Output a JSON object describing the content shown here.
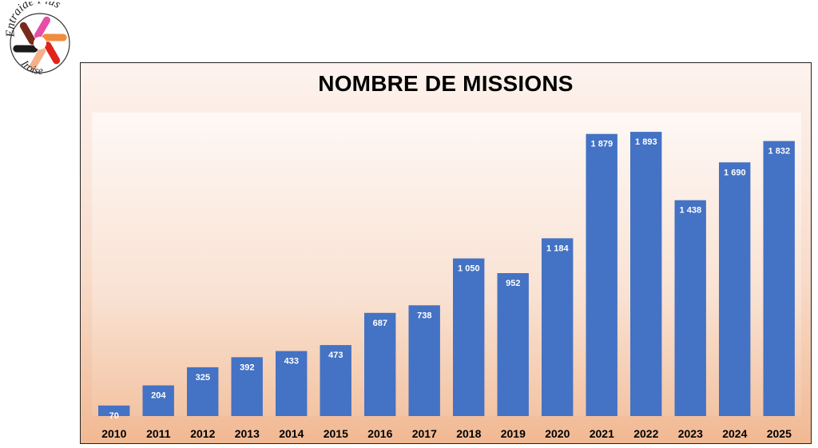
{
  "logo": {
    "text_top": "Entraide Plus",
    "text_bottom": "Iroise",
    "hand_colors": [
      "#e0241b",
      "#f4b08a",
      "#1a1a1a",
      "#7a2a1c",
      "#e64fa8",
      "#f08c3c"
    ]
  },
  "chart_data": {
    "type": "bar",
    "title": "NOMBRE DE MISSIONS",
    "xlabel": "",
    "ylabel": "",
    "categories": [
      "2010",
      "2011",
      "2012",
      "2013",
      "2014",
      "2015",
      "2016",
      "2017",
      "2018",
      "2019",
      "2020",
      "2021",
      "2022",
      "2023",
      "2024",
      "2025"
    ],
    "values": [
      70,
      204,
      325,
      392,
      433,
      473,
      687,
      738,
      1050,
      952,
      1184,
      1879,
      1893,
      1438,
      1690,
      1832
    ],
    "value_labels": [
      "70",
      "204",
      "325",
      "392",
      "433",
      "473",
      "687",
      "738",
      "1 050",
      "952",
      "1 184",
      "1 879",
      "1 893",
      "1 438",
      "1 690",
      "1 832"
    ],
    "ylim": [
      0,
      2000
    ],
    "grid": false,
    "legend": "none",
    "bar_color": "#4472c4"
  }
}
